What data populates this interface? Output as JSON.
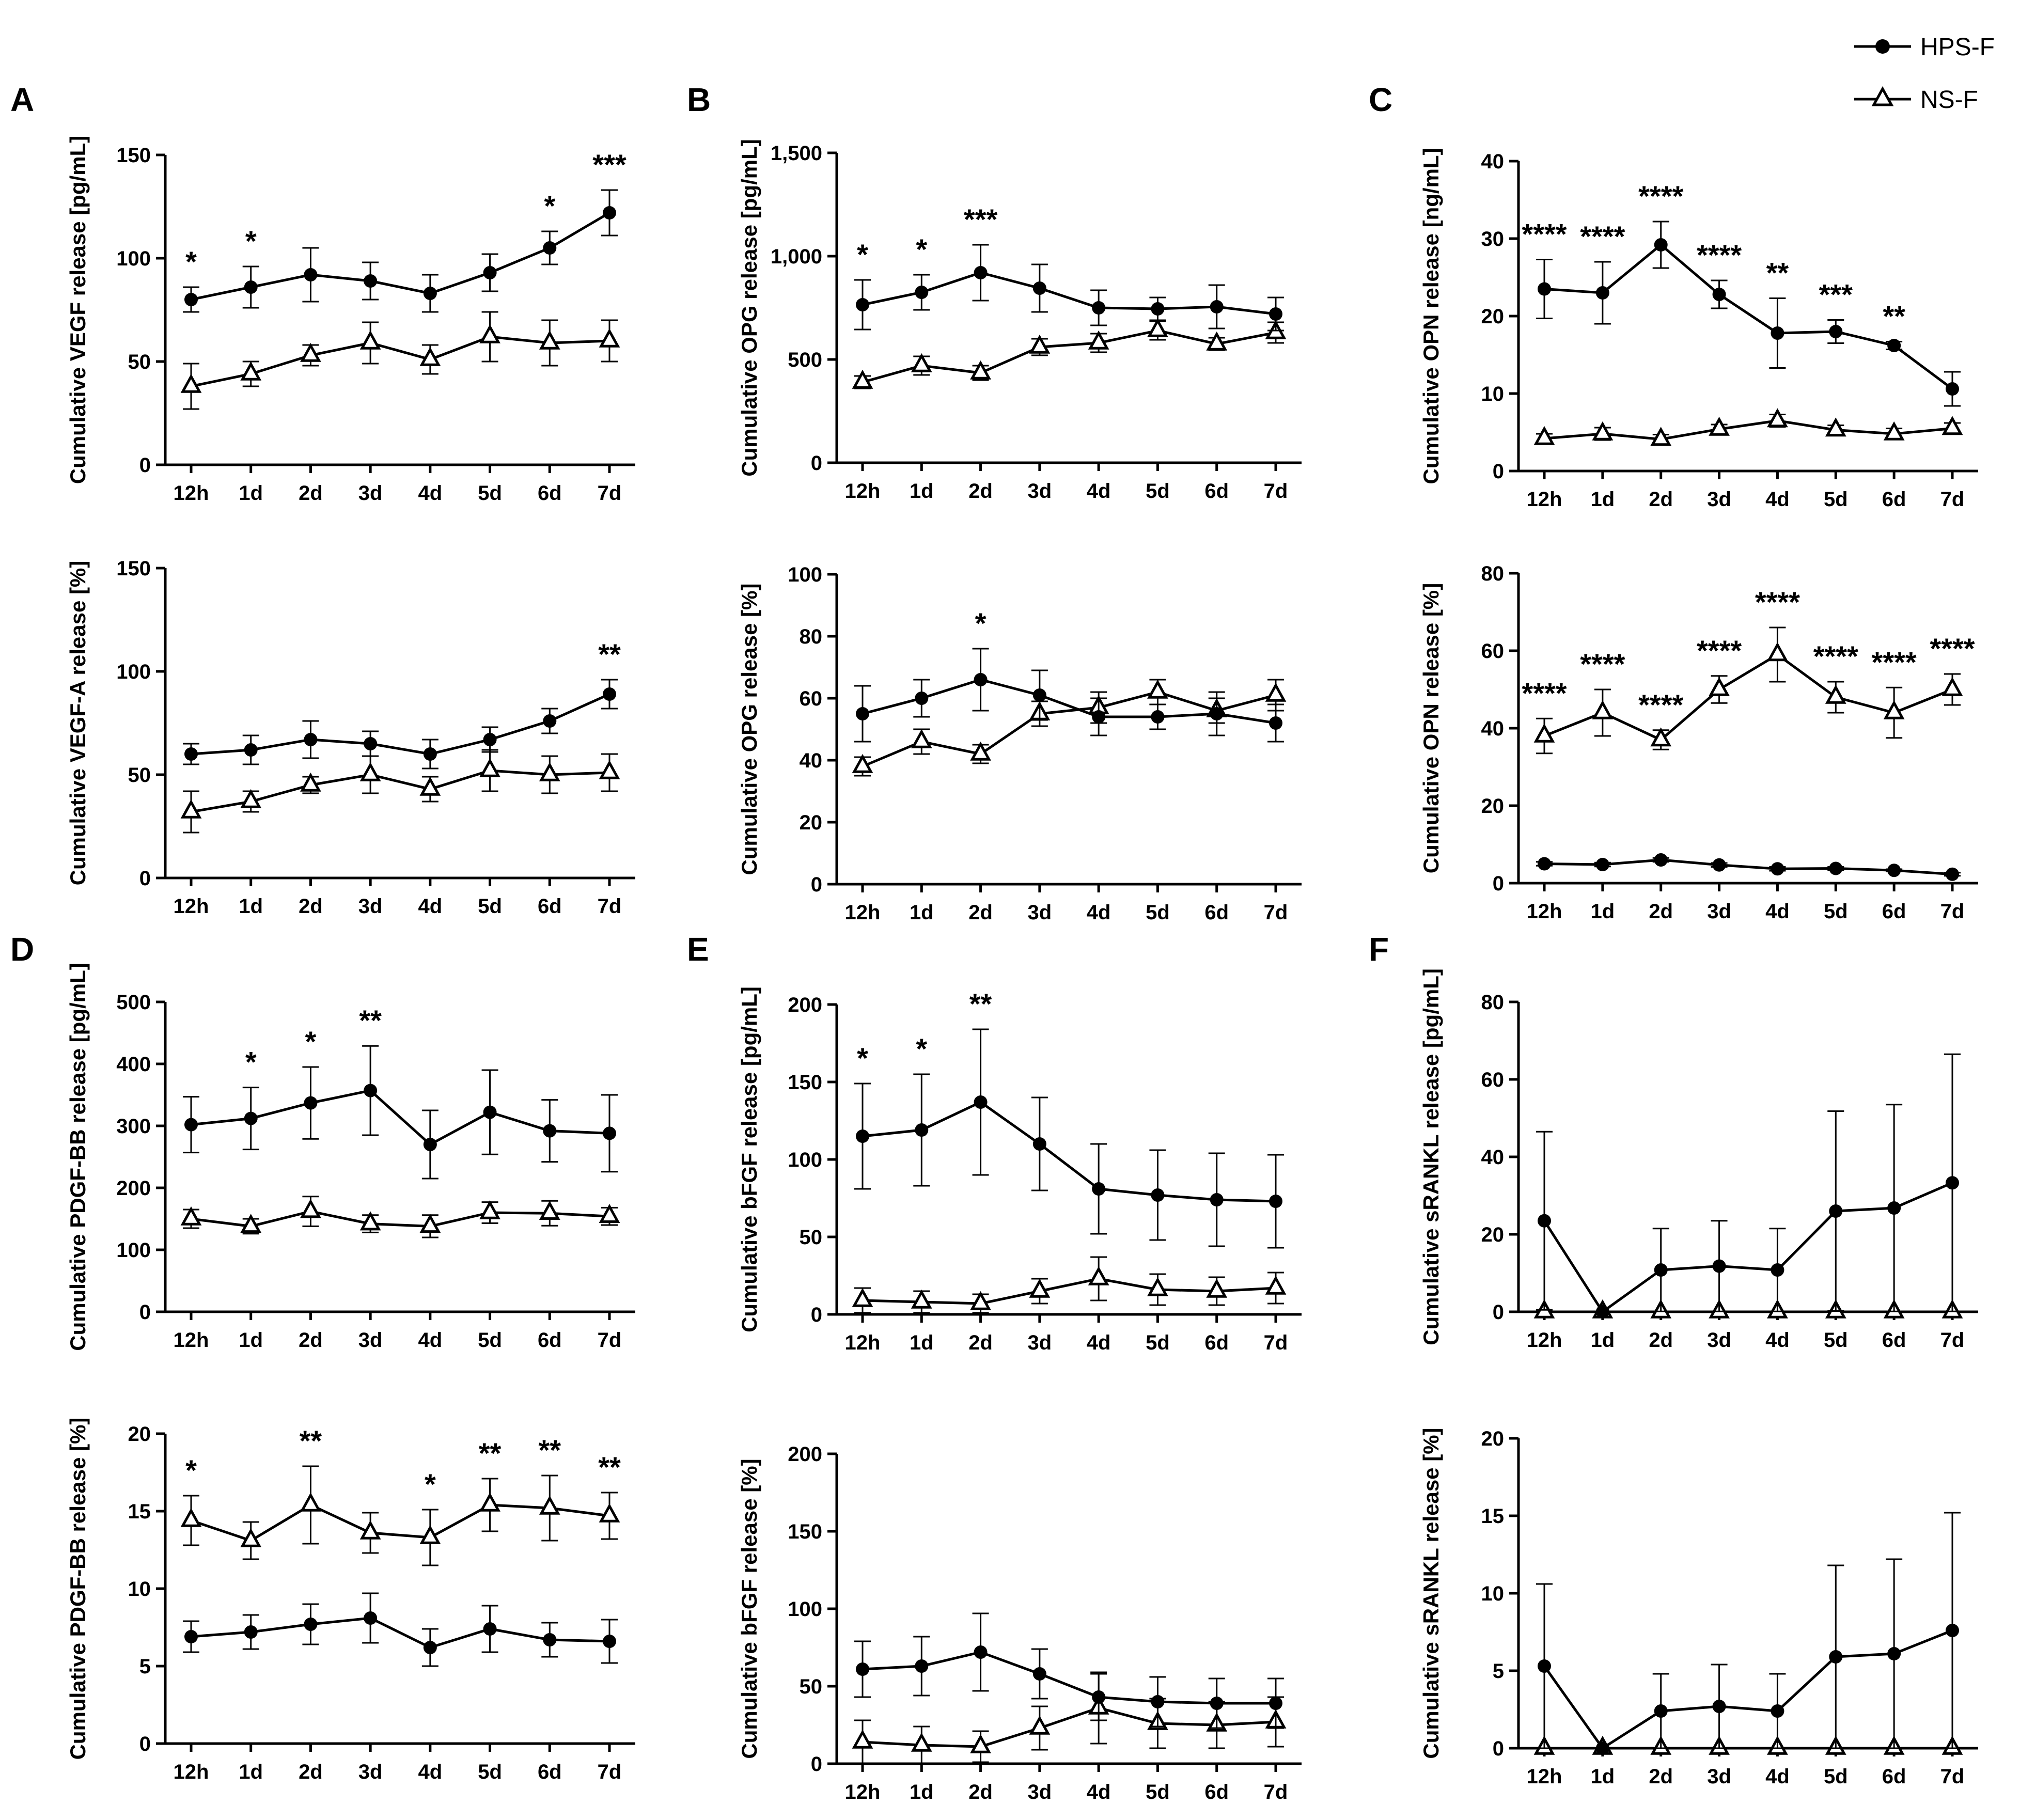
{
  "legend": {
    "entries": [
      {
        "name": "HPS-F",
        "marker": "circle-filled"
      },
      {
        "name": "NS-F",
        "marker": "triangle-open"
      }
    ]
  },
  "chart_data": [
    {
      "type": "line",
      "panel_label": "A",
      "categories": [
        "12h",
        "1d",
        "2d",
        "3d",
        "4d",
        "5d",
        "6d",
        "7d"
      ],
      "ylabel": "Cumulative VEGF release [pg/mL]",
      "ylim": [
        0,
        150
      ],
      "yticks": [
        "0",
        "50",
        "100",
        "150"
      ],
      "ytick_values": [
        0,
        50,
        100,
        150
      ],
      "series": [
        {
          "name": "HPS-F",
          "values": [
            80,
            86,
            92,
            89,
            83,
            93,
            105,
            122
          ],
          "errors": [
            6,
            10,
            13,
            9,
            9,
            9,
            8,
            11
          ]
        },
        {
          "name": "NS-F",
          "values": [
            38,
            44,
            53,
            59,
            51,
            62,
            59,
            60
          ],
          "errors": [
            11,
            6,
            5,
            10,
            7,
            12,
            11,
            10
          ]
        }
      ],
      "significance": [
        "*",
        "*",
        "",
        "",
        "",
        "",
        "*",
        "***"
      ],
      "star_above_series": "HPS-F"
    },
    {
      "type": "line",
      "panel_label": "",
      "categories": [
        "12h",
        "1d",
        "2d",
        "3d",
        "4d",
        "5d",
        "6d",
        "7d"
      ],
      "ylabel": "Cumulative VEGF-A release [%]",
      "ylim": [
        0,
        150
      ],
      "yticks": [
        "0",
        "50",
        "100",
        "150"
      ],
      "ytick_values": [
        0,
        50,
        100,
        150
      ],
      "series": [
        {
          "name": "HPS-F",
          "values": [
            60,
            62,
            67,
            65,
            60,
            67,
            76,
            89
          ],
          "errors": [
            5,
            7,
            9,
            6,
            7,
            6,
            6,
            7
          ]
        },
        {
          "name": "NS-F",
          "values": [
            32,
            37,
            45,
            50,
            43,
            52,
            50,
            51
          ],
          "errors": [
            10,
            5,
            4,
            9,
            6,
            10,
            9,
            9
          ]
        }
      ],
      "significance": [
        "",
        "",
        "",
        "",
        "",
        "",
        "",
        "**"
      ],
      "star_above_series": "HPS-F"
    },
    {
      "type": "line",
      "panel_label": "B",
      "categories": [
        "12h",
        "1d",
        "2d",
        "3d",
        "4d",
        "5d",
        "6d",
        "7d"
      ],
      "ylabel": "Cumulative OPG release [pg/mL]",
      "ylim": [
        0,
        1500
      ],
      "yticks": [
        "0",
        "500",
        "1,000",
        "1,500"
      ],
      "ytick_values": [
        0,
        500,
        1000,
        1500
      ],
      "series": [
        {
          "name": "HPS-F",
          "values": [
            765,
            825,
            920,
            845,
            750,
            745,
            755,
            720
          ],
          "errors": [
            120,
            85,
            135,
            115,
            85,
            55,
            105,
            80
          ]
        },
        {
          "name": "NS-F",
          "values": [
            390,
            470,
            435,
            560,
            580,
            640,
            575,
            630
          ],
          "errors": [
            30,
            45,
            35,
            40,
            45,
            45,
            30,
            50
          ]
        }
      ],
      "significance": [
        "*",
        "*",
        "***",
        "",
        "",
        "",
        "",
        ""
      ],
      "star_above_series": "HPS-F"
    },
    {
      "type": "line",
      "panel_label": "",
      "categories": [
        "12h",
        "1d",
        "2d",
        "3d",
        "4d",
        "5d",
        "6d",
        "7d"
      ],
      "ylabel": "Cumulative OPG release [%]",
      "ylim": [
        0,
        100
      ],
      "yticks": [
        "0",
        "20",
        "40",
        "60",
        "80",
        "100"
      ],
      "ytick_values": [
        0,
        20,
        40,
        60,
        80,
        100
      ],
      "series": [
        {
          "name": "HPS-F",
          "values": [
            55,
            60,
            66,
            61,
            54,
            54,
            55,
            52
          ],
          "errors": [
            9,
            6,
            10,
            8,
            6,
            4,
            7,
            6
          ]
        },
        {
          "name": "NS-F",
          "values": [
            38,
            46,
            42,
            55,
            57,
            62,
            56,
            61
          ],
          "errors": [
            3,
            4,
            3,
            4,
            5,
            4,
            4,
            5
          ]
        }
      ],
      "significance": [
        "",
        "",
        "*",
        "",
        "",
        "",
        "",
        ""
      ],
      "star_above_series": "HPS-F"
    },
    {
      "type": "line",
      "panel_label": "C",
      "categories": [
        "12h",
        "1d",
        "2d",
        "3d",
        "4d",
        "5d",
        "6d",
        "7d"
      ],
      "ylabel": "Cumulative OPN release [ng/mL]",
      "ylim": [
        0,
        40
      ],
      "yticks": [
        "0",
        "10",
        "20",
        "30",
        "40"
      ],
      "ytick_values": [
        0,
        10,
        20,
        30,
        40
      ],
      "series": [
        {
          "name": "HPS-F",
          "values": [
            23.5,
            23.0,
            29.2,
            22.8,
            17.8,
            18.0,
            16.2,
            10.6
          ],
          "errors": [
            3.8,
            4.0,
            3.0,
            1.8,
            4.5,
            1.5,
            0.5,
            2.2
          ]
        },
        {
          "name": "NS-F",
          "values": [
            4.2,
            4.8,
            4.1,
            5.4,
            6.5,
            5.3,
            4.8,
            5.5
          ],
          "errors": [
            0.6,
            0.8,
            0.6,
            0.6,
            0.8,
            0.6,
            0.7,
            0.7
          ]
        }
      ],
      "significance": [
        "****",
        "****",
        "****",
        "****",
        "**",
        "***",
        "**",
        ""
      ],
      "star_above_series": "HPS-F"
    },
    {
      "type": "line",
      "panel_label": "",
      "categories": [
        "12h",
        "1d",
        "2d",
        "3d",
        "4d",
        "5d",
        "6d",
        "7d"
      ],
      "ylabel": "Cumulative OPN release [%]",
      "ylim": [
        0,
        80
      ],
      "yticks": [
        "0",
        "20",
        "40",
        "60",
        "80"
      ],
      "ytick_values": [
        0,
        20,
        40,
        60,
        80
      ],
      "series": [
        {
          "name": "HPS-F",
          "values": [
            5.0,
            4.8,
            6.0,
            4.7,
            3.7,
            3.8,
            3.3,
            2.3
          ],
          "errors": [
            0.5,
            0.5,
            0.5,
            0.5,
            0.5,
            0.4,
            0.3,
            0.4
          ]
        },
        {
          "name": "NS-F",
          "values": [
            38,
            44,
            37,
            50,
            59,
            48,
            44,
            50
          ],
          "errors": [
            4.5,
            6,
            2.5,
            3.5,
            7,
            4,
            6.5,
            4
          ]
        }
      ],
      "significance": [
        "****",
        "****",
        "****",
        "****",
        "****",
        "****",
        "****",
        "****"
      ],
      "star_above_series": "NS-F"
    },
    {
      "type": "line",
      "panel_label": "D",
      "categories": [
        "12h",
        "1d",
        "2d",
        "3d",
        "4d",
        "5d",
        "6d",
        "7d"
      ],
      "ylabel": "Cumulative PDGF-BB release [pg/mL]",
      "ylim": [
        0,
        500
      ],
      "yticks": [
        "0",
        "100",
        "200",
        "300",
        "400",
        "500"
      ],
      "ytick_values": [
        0,
        100,
        200,
        300,
        400,
        500
      ],
      "series": [
        {
          "name": "HPS-F",
          "values": [
            302,
            312,
            337,
            357,
            270,
            322,
            292,
            288
          ],
          "errors": [
            45,
            50,
            58,
            72,
            55,
            68,
            50,
            62
          ]
        },
        {
          "name": "NS-F",
          "values": [
            150,
            138,
            162,
            142,
            138,
            160,
            159,
            154
          ],
          "errors": [
            15,
            12,
            24,
            14,
            18,
            17,
            20,
            14
          ]
        }
      ],
      "significance": [
        "",
        "*",
        "*",
        "**",
        "",
        "",
        "",
        ""
      ],
      "star_above_series": "HPS-F"
    },
    {
      "type": "line",
      "panel_label": "",
      "categories": [
        "12h",
        "1d",
        "2d",
        "3d",
        "4d",
        "5d",
        "6d",
        "7d"
      ],
      "ylabel": "Cumulative PDGF-BB release [%]",
      "ylim": [
        0,
        20
      ],
      "yticks": [
        "0",
        "5",
        "10",
        "15",
        "20"
      ],
      "ytick_values": [
        0,
        5,
        10,
        15,
        20
      ],
      "series": [
        {
          "name": "HPS-F",
          "values": [
            6.9,
            7.2,
            7.7,
            8.1,
            6.2,
            7.4,
            6.7,
            6.6
          ],
          "errors": [
            1.0,
            1.1,
            1.3,
            1.6,
            1.2,
            1.5,
            1.1,
            1.4
          ]
        },
        {
          "name": "NS-F",
          "values": [
            14.4,
            13.1,
            15.4,
            13.6,
            13.3,
            15.4,
            15.2,
            14.7
          ],
          "errors": [
            1.6,
            1.2,
            2.5,
            1.3,
            1.8,
            1.7,
            2.1,
            1.5
          ]
        }
      ],
      "significance": [
        "*",
        "",
        "**",
        "",
        "*",
        "**",
        "**",
        "**"
      ],
      "star_above_series": "NS-F"
    },
    {
      "type": "line",
      "panel_label": "E",
      "categories": [
        "12h",
        "1d",
        "2d",
        "3d",
        "4d",
        "5d",
        "6d",
        "7d"
      ],
      "ylabel": "Cumulative bFGF release [pg/mL]",
      "ylim": [
        0,
        200
      ],
      "yticks": [
        "0",
        "50",
        "100",
        "150",
        "200"
      ],
      "ytick_values": [
        0,
        50,
        100,
        150,
        200
      ],
      "series": [
        {
          "name": "HPS-F",
          "values": [
            115,
            119,
            137,
            110,
            81,
            77,
            74,
            73
          ],
          "errors": [
            34,
            36,
            47,
            30,
            29,
            29,
            30,
            30
          ]
        },
        {
          "name": "NS-F",
          "values": [
            9,
            8,
            7,
            15,
            23,
            16,
            15,
            17
          ],
          "errors": [
            8,
            7,
            6,
            8,
            14,
            10,
            9,
            10
          ]
        }
      ],
      "significance": [
        "*",
        "*",
        "**",
        "",
        "",
        "",
        "",
        ""
      ],
      "star_above_series": "HPS-F"
    },
    {
      "type": "line",
      "panel_label": "",
      "categories": [
        "12h",
        "1d",
        "2d",
        "3d",
        "4d",
        "5d",
        "6d",
        "7d"
      ],
      "ylabel": "Cumulative bFGF release [%]",
      "ylim": [
        0,
        200
      ],
      "yticks": [
        "0",
        "50",
        "100",
        "150",
        "200"
      ],
      "ytick_values": [
        0,
        50,
        100,
        150,
        200
      ],
      "series": [
        {
          "name": "HPS-F",
          "values": [
            61,
            63,
            72,
            58,
            43,
            40,
            39,
            39
          ],
          "errors": [
            18,
            19,
            25,
            16,
            15,
            16,
            16,
            16
          ]
        },
        {
          "name": "NS-F",
          "values": [
            14,
            12,
            11,
            23,
            36,
            26,
            25,
            27
          ],
          "errors": [
            14,
            12,
            10,
            14,
            23,
            16,
            15,
            16
          ]
        }
      ],
      "significance": [
        "",
        "",
        "",
        "",
        "",
        "",
        "",
        ""
      ],
      "star_above_series": "HPS-F"
    },
    {
      "type": "line",
      "panel_label": "F",
      "categories": [
        "12h",
        "1d",
        "2d",
        "3d",
        "4d",
        "5d",
        "6d",
        "7d"
      ],
      "ylabel": "Cumulative sRANKL release [pg/mL]",
      "ylim": [
        0,
        80
      ],
      "yticks": [
        "0",
        "20",
        "40",
        "60",
        "80"
      ],
      "ytick_values": [
        0,
        20,
        40,
        60,
        80
      ],
      "series": [
        {
          "name": "HPS-F",
          "values": [
            23.5,
            0,
            10.8,
            11.8,
            10.8,
            26.0,
            26.8,
            33.3
          ],
          "errors": [
            23,
            0,
            10.7,
            11.7,
            10.7,
            25.8,
            26.7,
            33.2
          ]
        },
        {
          "name": "NS-F",
          "values": [
            0,
            0,
            0,
            0,
            0,
            0,
            0,
            0
          ],
          "errors": [
            0,
            0,
            0,
            0,
            0,
            0,
            0,
            0
          ]
        }
      ],
      "significance": [
        "",
        "",
        "",
        "",
        "",
        "",
        "",
        ""
      ],
      "star_above_series": "HPS-F"
    },
    {
      "type": "line",
      "panel_label": "",
      "categories": [
        "12h",
        "1d",
        "2d",
        "3d",
        "4d",
        "5d",
        "6d",
        "7d"
      ],
      "ylabel": "Cumulative sRANKL release [%]",
      "ylim": [
        0,
        20
      ],
      "yticks": [
        "0",
        "5",
        "10",
        "15",
        "20"
      ],
      "ytick_values": [
        0,
        5,
        10,
        15,
        20
      ],
      "series": [
        {
          "name": "HPS-F",
          "values": [
            5.3,
            0,
            2.4,
            2.7,
            2.4,
            5.9,
            6.1,
            7.6
          ],
          "errors": [
            5.3,
            0,
            2.4,
            2.7,
            2.4,
            5.9,
            6.1,
            7.6
          ]
        },
        {
          "name": "NS-F",
          "values": [
            0,
            0,
            0,
            0,
            0,
            0,
            0,
            0
          ],
          "errors": [
            0,
            0,
            0,
            0,
            0,
            0,
            0,
            0
          ]
        }
      ],
      "significance": [
        "",
        "",
        "",
        "",
        "",
        "",
        "",
        ""
      ],
      "star_above_series": "HPS-F"
    }
  ]
}
